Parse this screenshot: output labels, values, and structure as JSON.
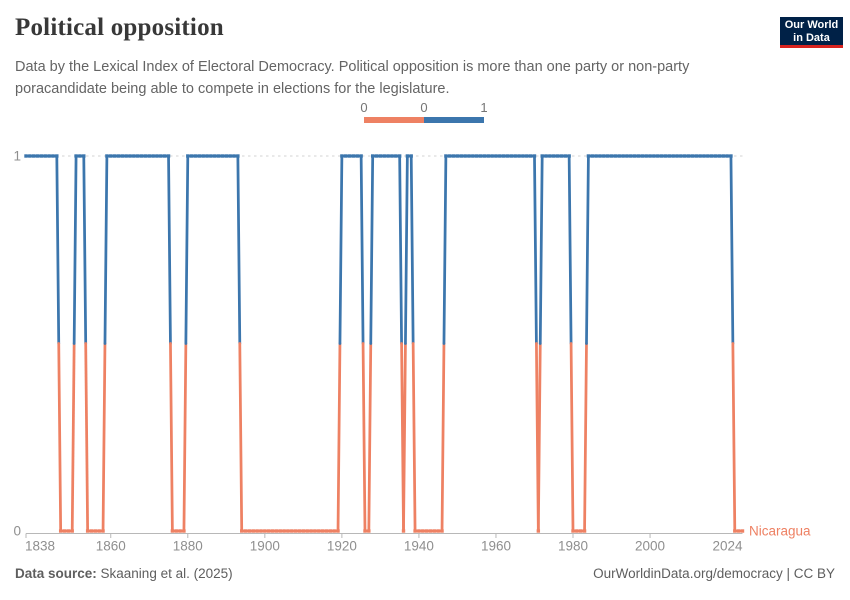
{
  "header": {
    "title": "Political opposition",
    "subtitle_line1": "Data by the Lexical Index of Electoral Democracy. Political opposition is more than one party or non-party",
    "subtitle_line2": "candidate being able to compete in elections for the legislature.",
    "logo": {
      "line1": "Our World",
      "line2": "in Data"
    }
  },
  "legend": {
    "labels": [
      "0",
      "0",
      "1"
    ],
    "color_zero": "#EE8163",
    "color_one": "#3C76AD"
  },
  "chart_data": {
    "type": "line",
    "style": "binary step line with yearly square point markers",
    "title": "Political opposition",
    "entity": "Nicaragua",
    "xlabel": "",
    "ylabel": "",
    "x_range": [
      1838,
      2024
    ],
    "y_values": [
      0,
      1
    ],
    "y_tick_labels": [
      "1",
      "0"
    ],
    "x_tick_years": [
      1838,
      1860,
      1880,
      1900,
      1920,
      1940,
      1960,
      1980,
      2000,
      2024
    ],
    "grid": "dashed horizontal gridline at y=1 only",
    "legend_position": "top-center",
    "colors": {
      "value_0": "#EE8163",
      "value_1": "#3C76AD",
      "gridline": "#dcdcdc",
      "axis": "#b8b8b8",
      "tick_text": "#8f8f8f"
    },
    "series": [
      {
        "name": "Nicaragua",
        "segments": [
          {
            "value": 1,
            "start": 1838,
            "end": 1846
          },
          {
            "value": 0,
            "start": 1847,
            "end": 1850
          },
          {
            "value": 1,
            "start": 1851,
            "end": 1853
          },
          {
            "value": 0,
            "start": 1854,
            "end": 1858
          },
          {
            "value": 1,
            "start": 1859,
            "end": 1875
          },
          {
            "value": 0,
            "start": 1876,
            "end": 1879
          },
          {
            "value": 1,
            "start": 1880,
            "end": 1893
          },
          {
            "value": 0,
            "start": 1894,
            "end": 1919
          },
          {
            "value": 1,
            "start": 1920,
            "end": 1925
          },
          {
            "value": 0,
            "start": 1926,
            "end": 1927
          },
          {
            "value": 1,
            "start": 1928,
            "end": 1935
          },
          {
            "value": 0,
            "start": 1936,
            "end": 1936
          },
          {
            "value": 1,
            "start": 1937,
            "end": 1938
          },
          {
            "value": 0,
            "start": 1939,
            "end": 1946
          },
          {
            "value": 1,
            "start": 1947,
            "end": 1970
          },
          {
            "value": 0,
            "start": 1971,
            "end": 1971
          },
          {
            "value": 1,
            "start": 1972,
            "end": 1979
          },
          {
            "value": 0,
            "start": 1980,
            "end": 1983
          },
          {
            "value": 1,
            "start": 1984,
            "end": 2021
          },
          {
            "value": 0,
            "start": 2022,
            "end": 2024
          }
        ]
      }
    ]
  },
  "footer": {
    "source_label": "Data source:",
    "source_text": " Skaaning et al. (2025)",
    "right_text": "OurWorldinData.org/democracy | CC BY"
  }
}
